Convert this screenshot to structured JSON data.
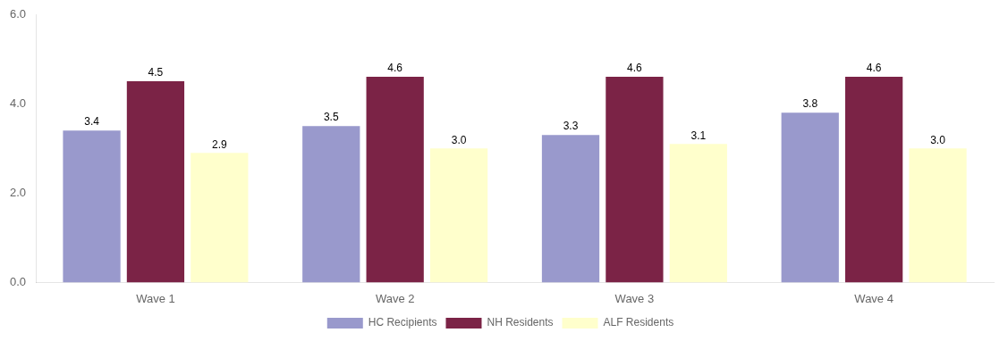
{
  "chart_data": {
    "type": "bar",
    "categories": [
      "Wave 1",
      "Wave 2",
      "Wave 3",
      "Wave 4"
    ],
    "series": [
      {
        "name": "HC Recipients",
        "color": "#9999cc",
        "values": [
          3.4,
          3.5,
          3.3,
          3.8
        ],
        "value_labels": [
          "3.4",
          "3.5",
          "3.3",
          "3.8"
        ]
      },
      {
        "name": "NH Residents",
        "color": "#7b2346",
        "values": [
          4.5,
          4.6,
          4.6,
          4.6
        ],
        "value_labels": [
          "4.5",
          "4.6",
          "4.6",
          "4.6"
        ]
      },
      {
        "name": "ALF Residents",
        "color": "#ffffcc",
        "values": [
          2.9,
          3.0,
          3.1,
          3.0
        ],
        "value_labels": [
          "2.9",
          "3.0",
          "3.1",
          "3.0"
        ]
      }
    ],
    "ylim": [
      0,
      6.0
    ],
    "yticks": [
      {
        "value": 0,
        "label": "0.0"
      },
      {
        "value": 2,
        "label": "2.0"
      },
      {
        "value": 4,
        "label": "4.0"
      },
      {
        "value": 6,
        "label": "6.0"
      }
    ],
    "grid": false,
    "legend": "bottom",
    "data_labels": true
  }
}
